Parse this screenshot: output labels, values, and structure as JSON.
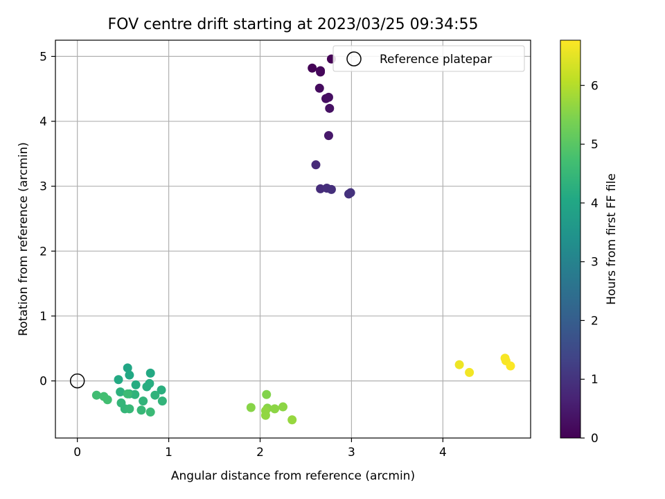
{
  "chart_data": {
    "type": "scatter",
    "title": "FOV centre drift starting at 2023/03/25 09:34:55",
    "xlabel": "Angular distance from reference (arcmin)",
    "ylabel": "Rotation from reference (arcmin)",
    "xlim": [
      -0.24,
      4.96
    ],
    "ylim": [
      -0.88,
      5.25
    ],
    "xticks": [
      0,
      1,
      2,
      3,
      4
    ],
    "yticks": [
      0,
      1,
      2,
      3,
      4,
      5
    ],
    "grid": true,
    "colormap": "viridis",
    "colorbar": {
      "label": "Hours from first FF file",
      "range": [
        0,
        6.77
      ],
      "ticks": [
        0,
        1,
        2,
        3,
        4,
        5,
        6
      ]
    },
    "legend": {
      "placement": "top-right",
      "entries": [
        "Reference platepar"
      ]
    },
    "reference_point": {
      "x": 0,
      "y": 0,
      "label": "Reference platepar"
    },
    "series": [
      {
        "points": [
          {
            "x": 2.57,
            "y": 4.82,
            "t": 0.05
          },
          {
            "x": 2.66,
            "y": 4.78,
            "t": 0.1
          },
          {
            "x": 2.66,
            "y": 4.76,
            "t": 0.12
          },
          {
            "x": 2.78,
            "y": 4.96,
            "t": 0.02
          },
          {
            "x": 2.65,
            "y": 4.51,
            "t": 0.2
          },
          {
            "x": 2.72,
            "y": 4.35,
            "t": 0.25
          },
          {
            "x": 2.75,
            "y": 4.37,
            "t": 0.28
          },
          {
            "x": 2.76,
            "y": 4.2,
            "t": 0.3
          },
          {
            "x": 2.75,
            "y": 3.78,
            "t": 0.45
          },
          {
            "x": 2.61,
            "y": 3.33,
            "t": 0.8
          },
          {
            "x": 2.66,
            "y": 2.96,
            "t": 0.85
          },
          {
            "x": 2.73,
            "y": 2.97,
            "t": 0.9
          },
          {
            "x": 2.78,
            "y": 2.95,
            "t": 0.92
          },
          {
            "x": 2.97,
            "y": 2.88,
            "t": 0.95
          },
          {
            "x": 2.99,
            "y": 2.9,
            "t": 0.97
          },
          {
            "x": 0.55,
            "y": 0.2,
            "t": 4.0
          },
          {
            "x": 0.57,
            "y": 0.09,
            "t": 4.05
          },
          {
            "x": 0.8,
            "y": 0.12,
            "t": 4.1
          },
          {
            "x": 0.45,
            "y": 0.02,
            "t": 4.1
          },
          {
            "x": 0.64,
            "y": -0.06,
            "t": 4.15
          },
          {
            "x": 0.79,
            "y": -0.04,
            "t": 4.2
          },
          {
            "x": 0.76,
            "y": -0.09,
            "t": 4.2
          },
          {
            "x": 0.92,
            "y": -0.14,
            "t": 4.25
          },
          {
            "x": 0.47,
            "y": -0.17,
            "t": 4.3
          },
          {
            "x": 0.57,
            "y": -0.2,
            "t": 4.3
          },
          {
            "x": 0.63,
            "y": -0.21,
            "t": 4.35
          },
          {
            "x": 0.85,
            "y": -0.22,
            "t": 4.35
          },
          {
            "x": 0.93,
            "y": -0.31,
            "t": 4.4
          },
          {
            "x": 0.72,
            "y": -0.31,
            "t": 4.4
          },
          {
            "x": 0.48,
            "y": -0.34,
            "t": 4.45
          },
          {
            "x": 0.52,
            "y": -0.43,
            "t": 4.45
          },
          {
            "x": 0.57,
            "y": -0.43,
            "t": 4.5
          },
          {
            "x": 0.7,
            "y": -0.45,
            "t": 4.5
          },
          {
            "x": 0.8,
            "y": -0.48,
            "t": 4.55
          },
          {
            "x": 0.55,
            "y": -0.2,
            "t": 4.6
          },
          {
            "x": 0.21,
            "y": -0.22,
            "t": 4.65
          },
          {
            "x": 0.29,
            "y": -0.24,
            "t": 4.7
          },
          {
            "x": 0.33,
            "y": -0.29,
            "t": 4.7
          },
          {
            "x": 2.07,
            "y": -0.21,
            "t": 5.5
          },
          {
            "x": 1.9,
            "y": -0.41,
            "t": 5.55
          },
          {
            "x": 2.08,
            "y": -0.42,
            "t": 5.55
          },
          {
            "x": 2.16,
            "y": -0.43,
            "t": 5.6
          },
          {
            "x": 2.25,
            "y": -0.4,
            "t": 5.6
          },
          {
            "x": 2.06,
            "y": -0.46,
            "t": 5.65
          },
          {
            "x": 2.06,
            "y": -0.53,
            "t": 5.65
          },
          {
            "x": 2.35,
            "y": -0.6,
            "t": 5.7
          },
          {
            "x": 4.18,
            "y": 0.25,
            "t": 6.6
          },
          {
            "x": 4.29,
            "y": 0.13,
            "t": 6.65
          },
          {
            "x": 4.68,
            "y": 0.35,
            "t": 6.7
          },
          {
            "x": 4.69,
            "y": 0.31,
            "t": 6.72
          },
          {
            "x": 4.74,
            "y": 0.23,
            "t": 6.75
          }
        ]
      }
    ]
  }
}
